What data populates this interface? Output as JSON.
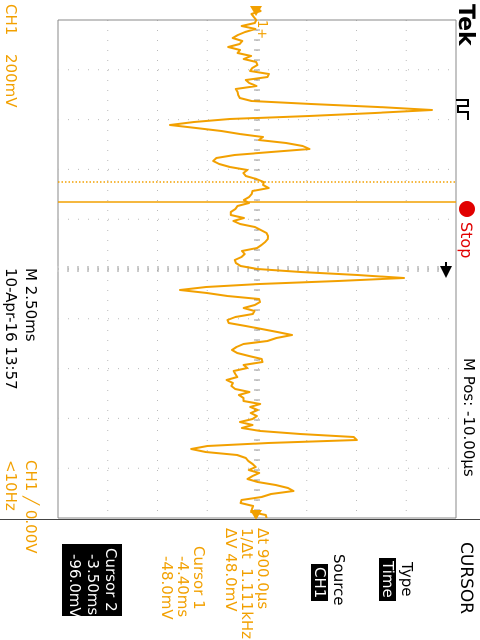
{
  "brand": "Tek",
  "trigger_icon": "trigger-edge-icon",
  "status": {
    "state": "Stop",
    "dot_color": "#e10000"
  },
  "horizontal": {
    "timebase": "M 2.50ms",
    "position": "M Pos: -10.00µs"
  },
  "channel": {
    "label": "CH1",
    "scale": "200mV",
    "trigger_readout": "CH1 ╱ 0.00V",
    "frequency": "<10Hz"
  },
  "timestamp": "10-Apr-16 13:57",
  "cursor_readout": {
    "delta_t": "Δt 900.0µs",
    "inv_delta_t": "1/Δt  1.111kHz",
    "delta_v": "ΔV 48.0mV"
  },
  "cursor1": {
    "title": "Cursor 1",
    "time": "-4.40ms",
    "value": "-48.0mV"
  },
  "cursor2": {
    "title": "Cursor 2",
    "time": "-3.50ms",
    "value": "-96.0mV"
  },
  "menu": {
    "title": "CURSOR",
    "type_label": "Type",
    "type_value": "Time",
    "source_label": "Source",
    "source_value": "CH1"
  },
  "colors": {
    "trace": "#f2a000",
    "grid": "#000000",
    "background": "#ffffff"
  }
}
